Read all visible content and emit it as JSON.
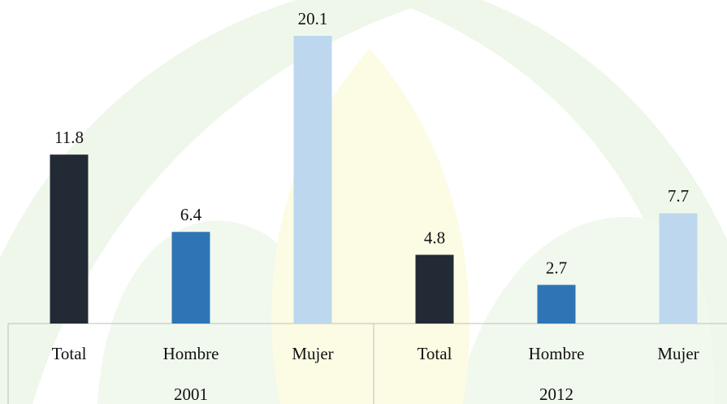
{
  "chart_data": {
    "type": "bar",
    "categories": [
      "Total",
      "Hombre",
      "Mujer",
      "Total",
      "Hombre",
      "Mujer"
    ],
    "groups": [
      "2001",
      "2012"
    ],
    "values": [
      11.8,
      6.4,
      20.1,
      4.8,
      2.7,
      7.7
    ],
    "colors": [
      "#222a35",
      "#2e75b6",
      "#bdd7ee",
      "#222a35",
      "#2e75b6",
      "#bdd7ee"
    ],
    "ylim": [
      0,
      22.6
    ]
  }
}
